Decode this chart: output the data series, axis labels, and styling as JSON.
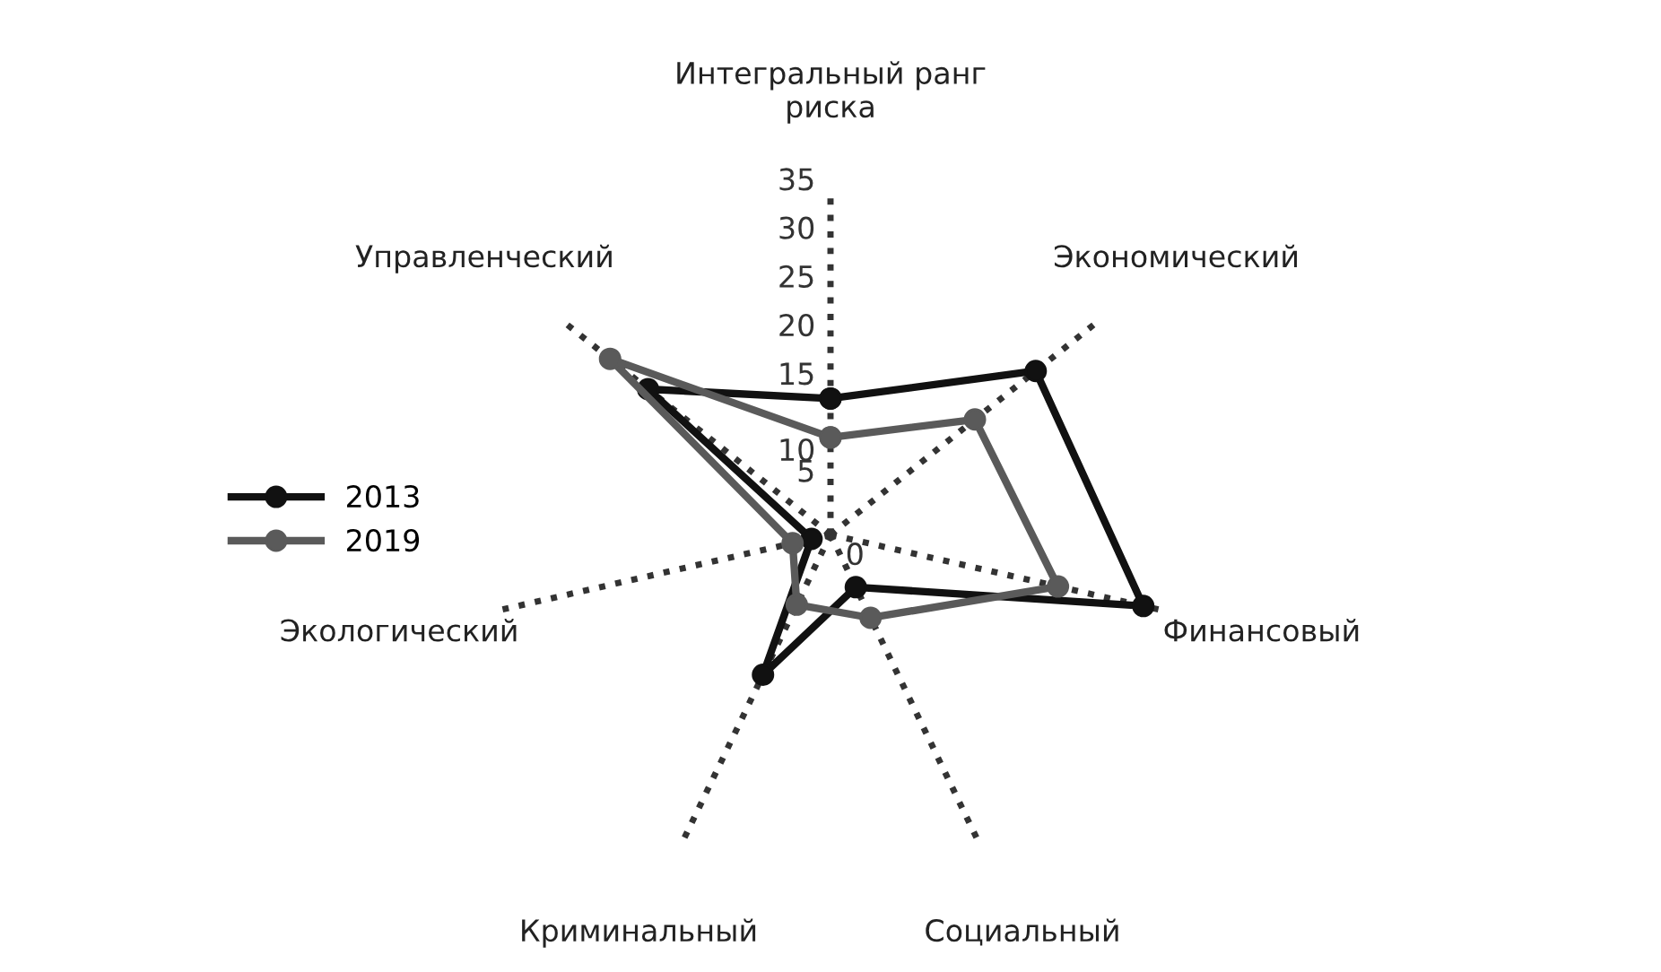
{
  "chart_data": {
    "type": "radar",
    "categories": [
      "Интегральный ранг\nриска",
      "Экономический",
      "Финансовый",
      "Социальный",
      "Криминальный",
      "Экологический",
      "Управленческий"
    ],
    "series": [
      {
        "name": "2013",
        "color": "#111111",
        "values": [
          14,
          27,
          33,
          6,
          16,
          2,
          24
        ]
      },
      {
        "name": "2019",
        "color": "#5a5a5a",
        "values": [
          10,
          19,
          24,
          9.5,
          8,
          4,
          29
        ]
      }
    ],
    "ylim": [
      0,
      35
    ],
    "yticks": [
      0,
      5,
      10,
      15,
      20,
      25,
      30,
      35
    ],
    "grid": "x",
    "legend": "left",
    "marker": "circle",
    "line_style": "solid"
  }
}
